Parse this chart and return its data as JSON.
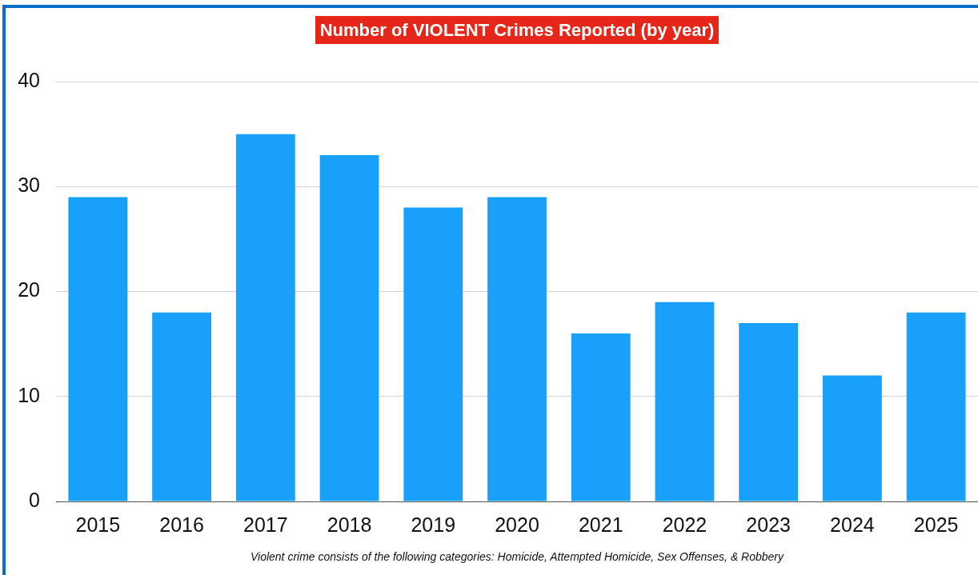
{
  "chart_data": {
    "type": "bar",
    "title": "Number of VIOLENT Crimes Reported (by year)",
    "categories": [
      "2015",
      "2016",
      "2017",
      "2018",
      "2019",
      "2020",
      "2021",
      "2022",
      "2023",
      "2024",
      "2025"
    ],
    "values": [
      29,
      18,
      35,
      33,
      28,
      29,
      16,
      19,
      17,
      12,
      18
    ],
    "color": "#18a0fb",
    "ylim": [
      0,
      40
    ],
    "yticks": [
      0,
      10,
      20,
      30,
      40
    ],
    "grid": "y",
    "annotations": [
      "Violent crime consists of the following categories: Homicide, Attempted Homicide, Sex Offenses, & Robbery"
    ]
  }
}
